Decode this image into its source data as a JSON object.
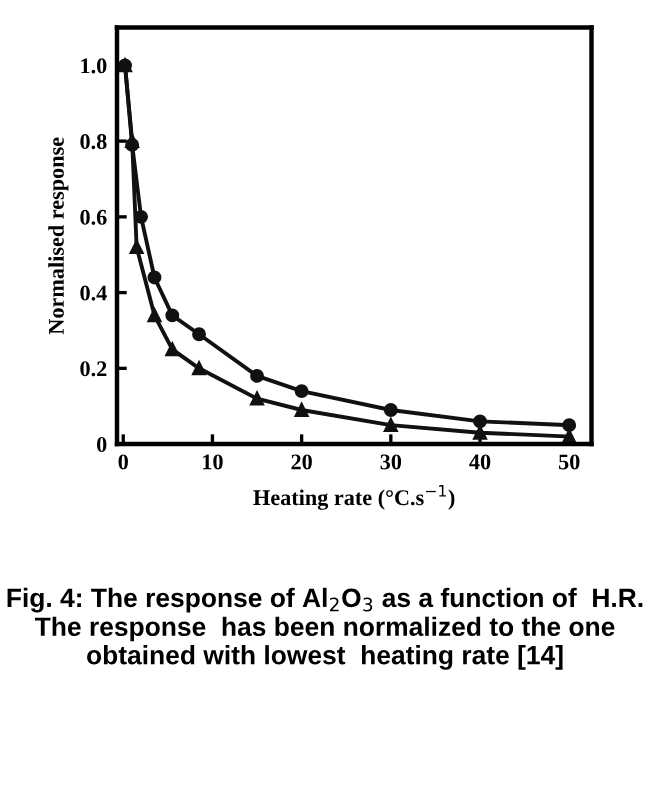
{
  "chart_data": {
    "type": "line",
    "xlabel": "Heating rate (°C.s$^{−1}$)",
    "ylabel": "Normalised response",
    "xlim": [
      -0.7,
      52.5
    ],
    "ylim": [
      0,
      1.1
    ],
    "xticks": [
      0,
      10,
      20,
      30,
      40,
      50
    ],
    "yticks": [
      0,
      0.2,
      0.4,
      0.6,
      0.8,
      {
        "value": 1.0,
        "label": "1.0"
      }
    ],
    "grid": false,
    "line_style": "solid",
    "series": [
      {
        "color": "#111111",
        "marker": "circle",
        "x": [
          0.2,
          1,
          2,
          3.5,
          5.5,
          8.5,
          15,
          20,
          30,
          40,
          50
        ],
        "values": [
          1.0,
          0.79,
          0.6,
          0.44,
          0.34,
          0.29,
          0.18,
          0.14,
          0.09,
          0.06,
          0.05
        ]
      },
      {
        "color": "#111111",
        "marker": "triangle",
        "x": [
          0.2,
          1,
          1.5,
          3.5,
          5.5,
          8.5,
          15,
          20,
          30,
          40,
          50
        ],
        "values": [
          1.0,
          0.8,
          0.52,
          0.34,
          0.25,
          0.2,
          0.12,
          0.09,
          0.05,
          0.03,
          0.02
        ]
      }
    ],
    "annotations": [
      "Fig. 4: The response of Al$_{2}$O$_{3}$ as a function of  H.R. The response  has been normalized to the one obtained with lowest  heating rate [14]"
    ]
  }
}
